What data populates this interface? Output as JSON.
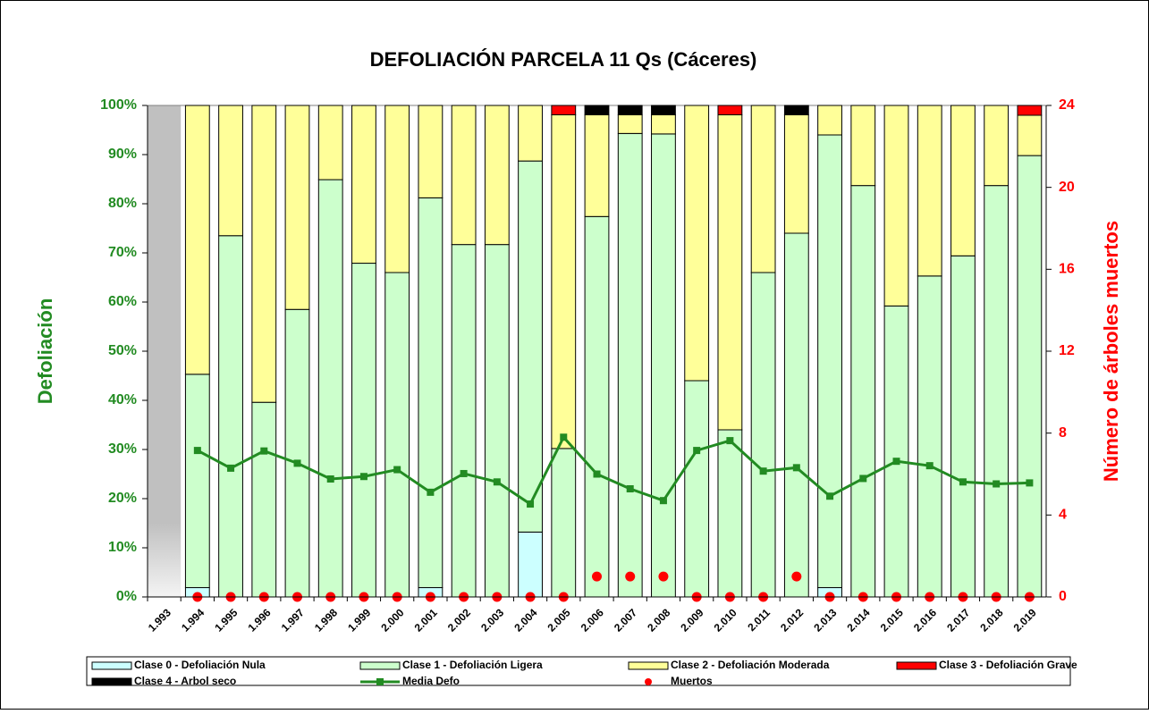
{
  "chart_data": {
    "type": "bar",
    "stacked": true,
    "title": "DEFOLIACIÓN PARCELA 11 Qs (Cáceres)",
    "y_label": "Defoliación",
    "y2_label": "Número de árboles muertos",
    "categories": [
      "1.993",
      "1.994",
      "1.995",
      "1.996",
      "1.997",
      "1.998",
      "1.999",
      "2.000",
      "2.001",
      "2.002",
      "2.003",
      "2.004",
      "2.005",
      "2.006",
      "2.007",
      "2.008",
      "2.009",
      "2.010",
      "2.011",
      "2.012",
      "2.013",
      "2.014",
      "2.015",
      "2.016",
      "2.017",
      "2.018",
      "2.019"
    ],
    "ylim": [
      0,
      100
    ],
    "yticks": [
      {
        "value": 0,
        "label": "0%"
      },
      {
        "value": 10,
        "label": "10%"
      },
      {
        "value": 20,
        "label": "20%"
      },
      {
        "value": 30,
        "label": "30%"
      },
      {
        "value": 40,
        "label": "40%"
      },
      {
        "value": 50,
        "label": "50%"
      },
      {
        "value": 60,
        "label": "60%"
      },
      {
        "value": 70,
        "label": "70%"
      },
      {
        "value": 80,
        "label": "80%"
      },
      {
        "value": 90,
        "label": "90%"
      },
      {
        "value": 100,
        "label": "100%"
      }
    ],
    "y2lim": [
      0,
      24
    ],
    "y2ticks": [
      0,
      4,
      8,
      12,
      16,
      20,
      24
    ],
    "series": [
      {
        "name": "Clase 0 - Defoliación Nula",
        "type": "bar",
        "color": "#ccffff",
        "values": [
          null,
          1.9,
          0,
          0,
          0,
          0,
          0,
          0,
          1.9,
          0,
          0,
          13.2,
          0,
          0,
          0,
          0,
          0,
          0,
          0,
          0,
          1.9,
          0,
          0,
          0,
          0,
          0,
          0
        ]
      },
      {
        "name": "Clase 1 - Defoliación Ligera",
        "type": "bar",
        "color": "#ccffcc",
        "values": [
          null,
          43.4,
          73.5,
          39.6,
          58.5,
          84.9,
          67.9,
          66.0,
          79.3,
          71.7,
          71.7,
          75.5,
          30.2,
          77.4,
          94.3,
          94.2,
          44.0,
          34.0,
          66.0,
          74.0,
          92.1,
          83.7,
          59.2,
          65.3,
          69.4,
          83.7,
          89.8
        ]
      },
      {
        "name": "Clase 2 - Defoliación Moderada",
        "type": "bar",
        "color": "#ffff99",
        "values": [
          null,
          54.7,
          26.5,
          60.4,
          41.5,
          15.1,
          32.1,
          34.0,
          18.8,
          28.3,
          28.3,
          11.3,
          67.9,
          20.7,
          3.8,
          3.9,
          56.0,
          64.1,
          34.0,
          24.1,
          6.0,
          16.3,
          40.8,
          34.7,
          30.6,
          16.3,
          8.2
        ]
      },
      {
        "name": "Clase 3 - Defoliación Grave",
        "type": "bar",
        "color": "#ff0000",
        "values": [
          null,
          0,
          0,
          0,
          0,
          0,
          0,
          0,
          0,
          0,
          0,
          0,
          1.9,
          0,
          0,
          0,
          0,
          1.9,
          0,
          0,
          0,
          0,
          0,
          0,
          0,
          0,
          2.0
        ]
      },
      {
        "name": "Clase 4 - Arbol seco",
        "type": "bar",
        "color": "#000000",
        "values": [
          null,
          0,
          0,
          0,
          0,
          0,
          0,
          0,
          0,
          0,
          0,
          0,
          0,
          1.9,
          1.9,
          1.9,
          0,
          0,
          0,
          1.9,
          0,
          0,
          0,
          0,
          0,
          0,
          0
        ]
      },
      {
        "name": "Media Defo",
        "type": "line",
        "color": "#228b22",
        "values": [
          null,
          29.8,
          26.2,
          29.7,
          27.2,
          24.0,
          24.5,
          25.9,
          21.3,
          25.1,
          23.4,
          18.9,
          32.5,
          25.0,
          22.0,
          19.6,
          29.8,
          31.8,
          25.6,
          26.3,
          20.5,
          24.1,
          27.6,
          26.7,
          23.4,
          23.0,
          23.2
        ]
      },
      {
        "name": "Muertos",
        "type": "scatter",
        "color": "#ff0000",
        "axis": "y2",
        "values": [
          null,
          0,
          0,
          0,
          0,
          0,
          0,
          0,
          0,
          0,
          0,
          0,
          0,
          1,
          1,
          1,
          0,
          0,
          0,
          1,
          0,
          0,
          0,
          0,
          0,
          0,
          0
        ]
      }
    ]
  }
}
